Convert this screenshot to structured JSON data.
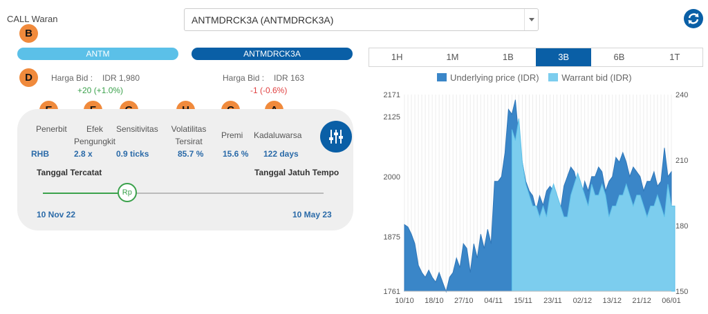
{
  "header": {
    "call_label": "CALL Waran",
    "selected_warrant": "ANTMDRCK3A (ANTMDRCK3A)"
  },
  "markers": {
    "a": "A",
    "b": "B",
    "c": "C",
    "d": "D",
    "e": "E",
    "f": "F",
    "g": "G",
    "h": "H"
  },
  "underlying": {
    "code": "ANTM",
    "bid_label": "Harga Bid :",
    "bid_value": "IDR 1,980",
    "change": "+20 (+1.0%)"
  },
  "warrant": {
    "code": "ANTMDRCK3A",
    "bid_label": "Harga Bid :",
    "bid_value": "IDR 163",
    "change": "-1 (-0.6%)"
  },
  "stats": {
    "issuer_label": "Penerbit",
    "issuer_value": "RHB",
    "gearing_label_1": "Efek",
    "gearing_label_2": "Pengungkit",
    "gearing_value": "2.8 x",
    "sensitivity_label": "Sensitivitas",
    "sensitivity_value": "0.9 ticks",
    "iv_label_1": "Volatilitas",
    "iv_label_2": "Tersirat",
    "iv_value": "85.7 %",
    "premium_label": "Premi",
    "premium_value": "15.6 %",
    "expiry_label": "Kadaluwarsa",
    "expiry_value": "122 days"
  },
  "dates": {
    "listing_label": "Tanggal Tercatat",
    "listing_value": "10 Nov 22",
    "maturity_label": "Tanggal Jatuh Tempo",
    "maturity_value": "10 May 23",
    "knob_label": "Rp",
    "progress": 0.3
  },
  "tabs": [
    {
      "label": "1H",
      "active": false
    },
    {
      "label": "1M",
      "active": false
    },
    {
      "label": "1B",
      "active": false
    },
    {
      "label": "3B",
      "active": true
    },
    {
      "label": "6B",
      "active": false
    },
    {
      "label": "1T",
      "active": false
    }
  ],
  "colors": {
    "underlying": "#3a86c8",
    "warrant": "#5bc0e8",
    "warrant_fill": "#7ccdee",
    "brand_dark": "#0a5fa6"
  },
  "icons": {
    "refresh": "refresh-icon",
    "filter": "sliders-icon"
  },
  "chart_data": {
    "type": "area",
    "series": [
      {
        "name": "Underlying price (IDR)",
        "axis": "left",
        "values": [
          1900,
          1895,
          1880,
          1860,
          1815,
          1800,
          1790,
          1805,
          1790,
          1780,
          1800,
          1780,
          1760,
          1790,
          1800,
          1830,
          1810,
          1860,
          1850,
          1800,
          1860,
          1830,
          1880,
          1850,
          1890,
          1860,
          1990,
          1990,
          2000,
          2050,
          2140,
          2130,
          2160,
          2080,
          2030,
          1990,
          1970,
          1960,
          1930,
          1960,
          1940,
          1970,
          1980,
          1970,
          1960,
          1930,
          1980,
          2000,
          2020,
          2010,
          1980,
          1950,
          1990,
          1970,
          2000,
          2000,
          2020,
          2010,
          1970,
          1990,
          2000,
          2040,
          2030,
          2050,
          2030,
          2000,
          2020,
          2010,
          2000,
          1970,
          1990,
          1990,
          2010,
          1980,
          1990,
          2060,
          2000,
          2010
        ]
      },
      {
        "name": "Warrant bid (IDR)",
        "axis": "right",
        "start_index": 31,
        "values": [
          224,
          219,
          229,
          209,
          199,
          194,
          189,
          189,
          184,
          189,
          184,
          194,
          199,
          194,
          189,
          184,
          184,
          194,
          199,
          204,
          199,
          194,
          189,
          199,
          194,
          194,
          199,
          194,
          184,
          189,
          189,
          194,
          194,
          199,
          194,
          189,
          194,
          194,
          189,
          184,
          189,
          189,
          194,
          189,
          184,
          199,
          189,
          189
        ]
      }
    ],
    "x_tick_labels": [
      "10/10",
      "18/10",
      "27/10",
      "04/11",
      "15/11",
      "23/11",
      "02/12",
      "13/12",
      "21/12",
      "06/01"
    ],
    "y_left_ticks": [
      1761,
      1875,
      2000,
      2125,
      2171
    ],
    "y_right_ticks": [
      150,
      180,
      210,
      240
    ],
    "y_left_range": [
      1761,
      2171
    ],
    "y_right_range": [
      150,
      240
    ],
    "grid": true,
    "legend": "top"
  }
}
